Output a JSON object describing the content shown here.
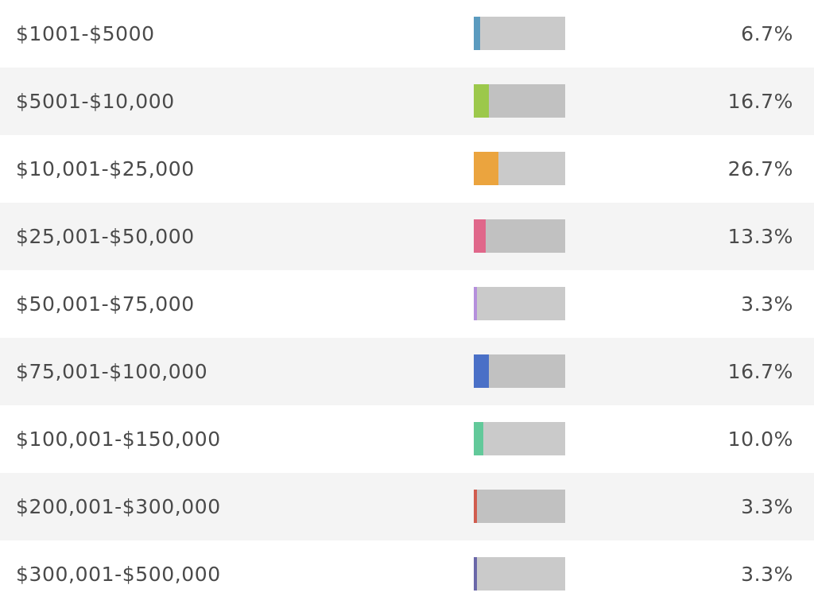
{
  "chart_data": {
    "type": "bar",
    "orientation": "horizontal",
    "value_unit": "%",
    "categories": [
      "$1001-$5000",
      "$5001-$10,000",
      "$10,001-$25,000",
      "$25,001-$50,000",
      "$50,001-$75,000",
      "$75,001-$100,000",
      "$100,001-$150,000",
      "$200,001-$300,000",
      "$300,001-$500,000"
    ],
    "values": [
      6.7,
      16.7,
      26.7,
      13.3,
      3.3,
      16.7,
      10.0,
      3.3,
      3.3
    ],
    "value_labels": [
      "6.7%",
      "16.7%",
      "26.7%",
      "13.3%",
      "3.3%",
      "16.7%",
      "10.0%",
      "3.3%",
      "3.3%"
    ],
    "colors": [
      "#5b9bbf",
      "#9cc84b",
      "#eba43e",
      "#e0678a",
      "#b58fdc",
      "#4a70c7",
      "#62c99a",
      "#d05c4e",
      "#6a67a8"
    ],
    "track_color": "#c8c8c8",
    "xlim": [
      0,
      100
    ],
    "grid": false,
    "legend": "none"
  }
}
